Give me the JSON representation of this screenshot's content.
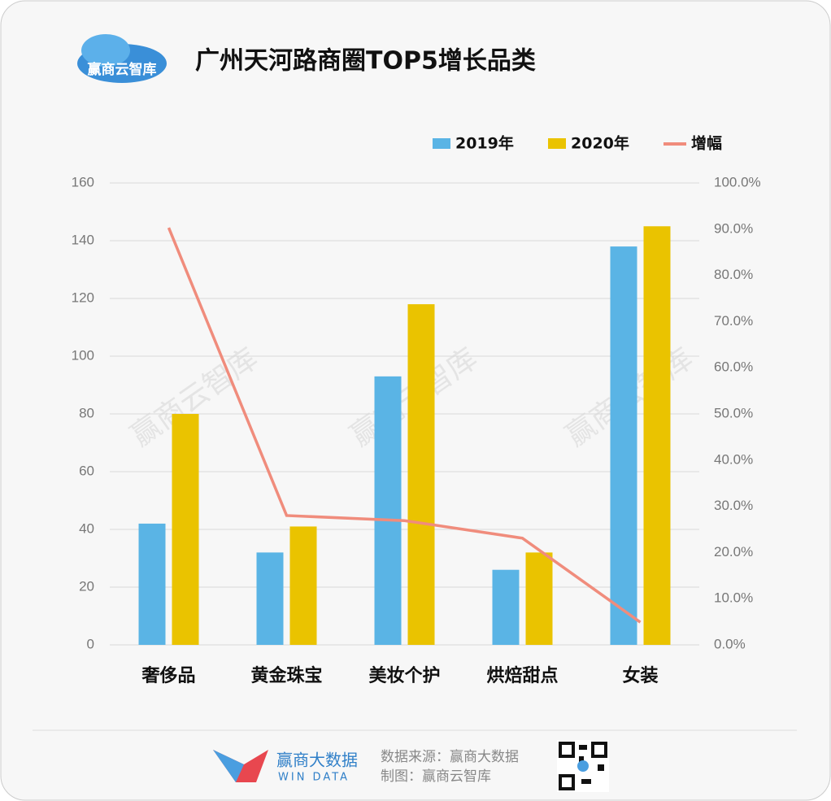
{
  "chart_data": {
    "type": "bar-line",
    "title": "广州天河路商圈TOP5增长品类",
    "categories": [
      "奢侈品",
      "黄金珠宝",
      "美妆个护",
      "烘焙甜点",
      "女装"
    ],
    "series": [
      {
        "name": "2019年",
        "type": "bar",
        "color": "#5ab4e5",
        "values": [
          42,
          32,
          93,
          26,
          138
        ]
      },
      {
        "name": "2020年",
        "type": "bar",
        "color": "#eac300",
        "values": [
          80,
          41,
          118,
          32,
          145
        ]
      },
      {
        "name": "增幅",
        "type": "line",
        "axis": "y2",
        "color": "#f08c7c",
        "values": [
          90.3,
          28.0,
          26.9,
          23.1,
          4.9
        ]
      }
    ],
    "ylim": [
      0,
      160
    ],
    "yticks": [
      0,
      20,
      40,
      60,
      80,
      100,
      120,
      140,
      160
    ],
    "y2lim": [
      0,
      100
    ],
    "y2ticks": [
      {
        "value": 0,
        "label": "0.0%"
      },
      {
        "value": 10,
        "label": "10.0%"
      },
      {
        "value": 20,
        "label": "20.0%"
      },
      {
        "value": 30,
        "label": "30.0%"
      },
      {
        "value": 40,
        "label": "40.0%"
      },
      {
        "value": 50,
        "label": "50.0%"
      },
      {
        "value": 60,
        "label": "60.0%"
      },
      {
        "value": 70,
        "label": "70.0%"
      },
      {
        "value": 80,
        "label": "80.0%"
      },
      {
        "value": 90,
        "label": "90.0%"
      },
      {
        "value": 100,
        "label": "100.0%"
      }
    ],
    "grid": true,
    "legend": "top-right"
  },
  "branding": {
    "logo": "赢商云智库",
    "watermark": "赢商云智库",
    "footer_brand": "赢商大数据",
    "footer_brand_en": "WIN DATA",
    "source": "数据来源：赢商大数据",
    "credit": "制图：赢商云智库"
  }
}
